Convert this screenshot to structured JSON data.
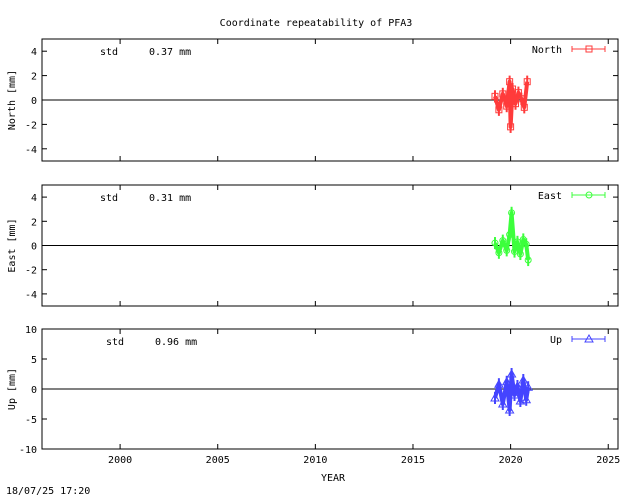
{
  "title": "Coordinate repeatability of PFA3",
  "timestamp": "18/07/25 17:20",
  "xlabel": "YEAR",
  "chart_data": [
    {
      "type": "scatter",
      "panel": "north",
      "ylabel": "North [mm]",
      "ylim": [
        -5,
        5
      ],
      "yticks": [
        -4,
        -2,
        0,
        2,
        4
      ],
      "xlim": [
        1996,
        2025.5
      ],
      "xticks": [
        2000,
        2005,
        2010,
        2015,
        2020,
        2025
      ],
      "show_xtick_labels": false,
      "std_label": "std",
      "std_value": "0.37 mm",
      "series": [
        {
          "name": "North",
          "color": "#ff3b3b",
          "marker": "square",
          "x": [
            2019.2,
            2019.4,
            2019.6,
            2019.8,
            2019.95,
            2020.0,
            2020.1,
            2020.25,
            2020.4,
            2020.55,
            2020.7,
            2020.85
          ],
          "y": [
            0.3,
            -0.8,
            0.5,
            -0.5,
            1.5,
            -2.2,
            0.9,
            -0.3,
            0.6,
            0.1,
            -0.6,
            1.5
          ]
        }
      ]
    },
    {
      "type": "scatter",
      "panel": "east",
      "ylabel": "East [mm]",
      "ylim": [
        -5,
        5
      ],
      "yticks": [
        -4,
        -2,
        0,
        2,
        4
      ],
      "xlim": [
        1996,
        2025.5
      ],
      "xticks": [
        2000,
        2005,
        2010,
        2015,
        2020,
        2025
      ],
      "show_xtick_labels": false,
      "std_label": "std",
      "std_value": "0.31 mm",
      "series": [
        {
          "name": "East",
          "color": "#3cff3c",
          "marker": "circle",
          "x": [
            2019.2,
            2019.4,
            2019.6,
            2019.8,
            2019.95,
            2020.05,
            2020.2,
            2020.35,
            2020.5,
            2020.65,
            2020.8,
            2020.9
          ],
          "y": [
            0.2,
            -0.6,
            0.4,
            -0.4,
            0.9,
            2.7,
            -0.5,
            0.3,
            -0.7,
            0.5,
            0.1,
            -1.2
          ]
        }
      ]
    },
    {
      "type": "scatter",
      "panel": "up",
      "ylabel": "Up [mm]",
      "ylim": [
        -10,
        10
      ],
      "yticks": [
        -10,
        -5,
        0,
        5,
        10
      ],
      "xlim": [
        1996,
        2025.5
      ],
      "xticks": [
        2000,
        2005,
        2010,
        2015,
        2020,
        2025
      ],
      "show_xtick_labels": true,
      "std_label": "std",
      "std_value": "0.96 mm",
      "series": [
        {
          "name": "Up",
          "color": "#4444ff",
          "marker": "triangle",
          "x": [
            2019.2,
            2019.4,
            2019.6,
            2019.8,
            2019.95,
            2020.05,
            2020.2,
            2020.35,
            2020.5,
            2020.65,
            2020.8,
            2020.9
          ],
          "y": [
            -1.5,
            0.8,
            -2.5,
            1.2,
            -3.5,
            2.5,
            -1.0,
            0.5,
            -2.0,
            1.5,
            -1.8,
            0.3
          ]
        }
      ]
    }
  ]
}
